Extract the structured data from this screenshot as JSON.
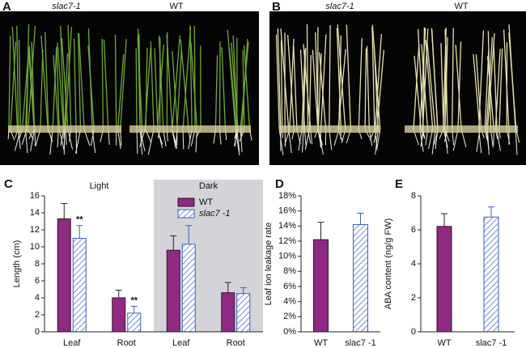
{
  "photos": [
    {
      "panel": "A",
      "labels": [
        "slac7-1",
        "WT"
      ]
    },
    {
      "panel": "B",
      "labels": [
        "slac7-1",
        "WT"
      ]
    }
  ],
  "chart_data": [
    {
      "panel": "C",
      "type": "bar",
      "ylabel": "Length (cm)",
      "groups": [
        {
          "label": "Light",
          "shaded": false
        },
        {
          "label": "Dark",
          "shaded": true
        }
      ],
      "categories": [
        "Leaf",
        "Root",
        "Leaf",
        "Root"
      ],
      "series": [
        {
          "name": "WT",
          "color": "#8e2a82",
          "hatched": false,
          "values": [
            13.3,
            4.0,
            9.6,
            4.6
          ],
          "errors": [
            1.8,
            0.9,
            1.7,
            1.2
          ]
        },
        {
          "name": "slac7 -1",
          "color": "#3a5fc8",
          "hatched": true,
          "values": [
            11.0,
            2.2,
            10.3,
            4.5
          ],
          "errors": [
            1.5,
            0.8,
            2.2,
            0.7
          ],
          "markers": [
            "**",
            "**",
            null,
            null
          ]
        }
      ],
      "ylim": [
        0,
        16
      ],
      "yticks": [
        0,
        2,
        4,
        6,
        8,
        10,
        12,
        14,
        16
      ],
      "legend": "upper right"
    },
    {
      "panel": "D",
      "type": "bar",
      "ylabel": "Leaf ion leakage rate",
      "categories": [
        "WT",
        "slac7 -1"
      ],
      "values": [
        12.2,
        14.2
      ],
      "errors": [
        2.3,
        1.5
      ],
      "colors": [
        "#8e2a82",
        "#3a5fc8"
      ],
      "hatched": [
        false,
        true
      ],
      "ylim": [
        0,
        18
      ],
      "yticks": [
        {
          "value": 0,
          "label": "0%"
        },
        {
          "value": 2,
          "label": "2%"
        },
        {
          "value": 4,
          "label": "4%"
        },
        {
          "value": 6,
          "label": "6%"
        },
        {
          "value": 8,
          "label": "8%"
        },
        {
          "value": 10,
          "label": "10%"
        },
        {
          "value": 12,
          "label": "12%"
        },
        {
          "value": 14,
          "label": "14%"
        },
        {
          "value": 16,
          "label": "16%"
        },
        {
          "value": 18,
          "label": "18%"
        }
      ]
    },
    {
      "panel": "E",
      "type": "bar",
      "ylabel": "ABA content (ng/g FW)",
      "categories": [
        "WT",
        "slac7 -1"
      ],
      "values": [
        6.2,
        6.75
      ],
      "errors": [
        0.75,
        0.6
      ],
      "colors": [
        "#8e2a82",
        "#3a5fc8"
      ],
      "hatched": [
        false,
        true
      ],
      "ylim": [
        0,
        8
      ],
      "yticks": [
        0,
        2,
        4,
        6,
        8
      ]
    }
  ]
}
